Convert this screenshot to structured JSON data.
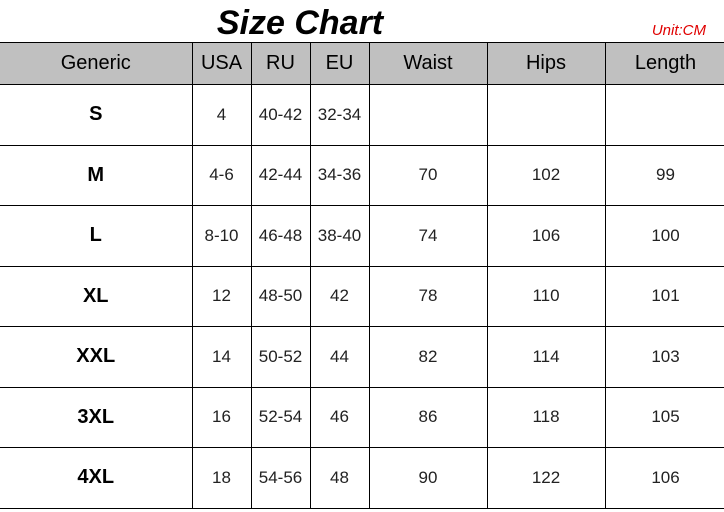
{
  "title": "Size Chart",
  "unit": "Unit:CM",
  "colors": {
    "header_bg": "#c0c0c0",
    "unit_text": "#e00000"
  },
  "columns": [
    "Generic",
    "USA",
    "RU",
    "EU",
    "Waist",
    "Hips",
    "Length"
  ],
  "rows": [
    [
      "S",
      "4",
      "40-42",
      "32-34",
      "",
      "",
      ""
    ],
    [
      "M",
      "4-6",
      "42-44",
      "34-36",
      "70",
      "102",
      "99"
    ],
    [
      "L",
      "8-10",
      "46-48",
      "38-40",
      "74",
      "106",
      "100"
    ],
    [
      "XL",
      "12",
      "48-50",
      "42",
      "78",
      "110",
      "101"
    ],
    [
      "XXL",
      "14",
      "50-52",
      "44",
      "82",
      "114",
      "103"
    ],
    [
      "3XL",
      "16",
      "52-54",
      "46",
      "86",
      "118",
      "105"
    ],
    [
      "4XL",
      "18",
      "54-56",
      "48",
      "90",
      "122",
      "106"
    ]
  ]
}
